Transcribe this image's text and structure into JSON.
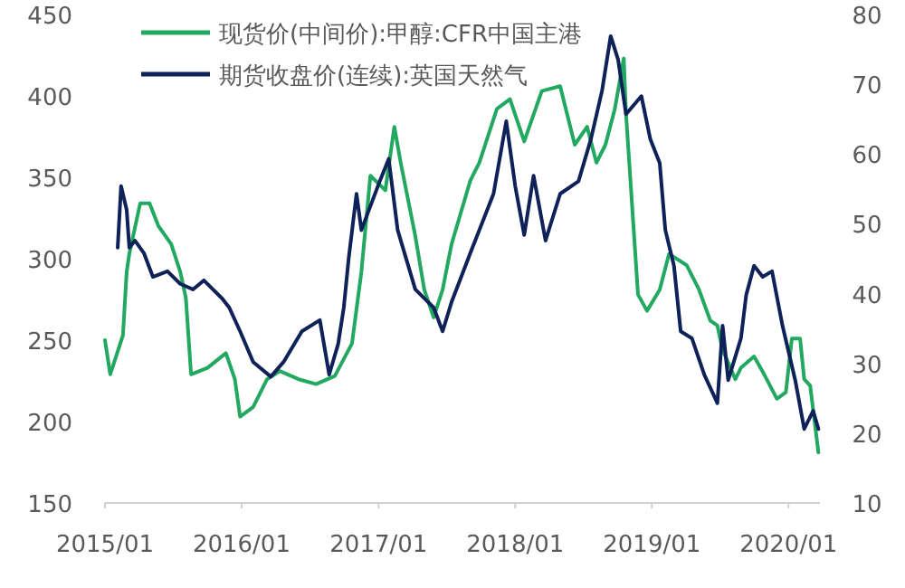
{
  "chart_data": {
    "type": "line",
    "legend": "top left",
    "grid": false,
    "xlim": [
      "2015-01-01",
      "2020-03-25"
    ],
    "xticks": [
      {
        "value": "2015-01-01",
        "label": "2015/01"
      },
      {
        "value": "2016-01-01",
        "label": "2016/01"
      },
      {
        "value": "2017-01-01",
        "label": "2017/01"
      },
      {
        "value": "2018-01-01",
        "label": "2018/01"
      },
      {
        "value": "2019-01-01",
        "label": "2019/01"
      },
      {
        "value": "2020-01-01",
        "label": "2020/01"
      }
    ],
    "ylim": [
      150,
      450
    ],
    "yticks": [
      150,
      200,
      250,
      300,
      350,
      400,
      450
    ],
    "y2lim": [
      10,
      80
    ],
    "y2ticks": [
      10,
      20,
      30,
      40,
      50,
      60,
      70,
      80
    ],
    "series": [
      {
        "name": "现货价(中间价):甲醇:CFR中国主港",
        "color": "#22a860",
        "x": [
          "2015-01-01",
          "2015-01-15",
          "2015-02-18",
          "2015-02-28",
          "2015-03-07",
          "2015-04-05",
          "2015-04-30",
          "2015-05-24",
          "2015-06-27",
          "2015-07-21",
          "2015-08-05",
          "2015-08-19",
          "2015-10-02",
          "2015-11-20",
          "2015-12-14",
          "2015-12-28",
          "2016-02-01",
          "2016-03-09",
          "2016-04-12",
          "2016-06-01",
          "2016-07-18",
          "2016-09-06",
          "2016-10-22",
          "2016-11-16",
          "2016-12-10",
          "2017-01-19",
          "2017-02-12",
          "2017-03-01",
          "2017-04-09",
          "2017-05-03",
          "2017-05-28",
          "2017-06-21",
          "2017-07-15",
          "2017-09-03",
          "2017-09-27",
          "2017-11-13",
          "2017-12-18",
          "2018-01-25",
          "2018-03-13",
          "2018-05-01",
          "2018-06-09",
          "2018-07-12",
          "2018-08-06",
          "2018-08-30",
          "2018-09-24",
          "2018-10-18",
          "2018-10-24",
          "2018-11-25",
          "2018-12-19",
          "2019-01-22",
          "2019-02-16",
          "2019-04-04",
          "2019-05-07",
          "2019-06-06",
          "2019-06-25",
          "2019-07-09",
          "2019-08-12",
          "2019-08-27",
          "2019-10-01",
          "2019-10-28",
          "2019-12-01",
          "2019-12-25",
          "2020-01-10",
          "2020-02-01",
          "2020-02-12",
          "2020-02-28",
          "2020-03-21"
        ],
        "values": [
          250,
          229,
          253,
          292,
          303,
          334,
          334,
          320,
          309,
          292,
          276,
          229,
          233,
          242,
          226,
          203,
          209,
          226,
          231,
          226,
          223,
          228,
          248,
          292,
          351,
          342,
          381,
          359,
          314,
          281,
          264,
          281,
          309,
          348,
          359,
          392,
          398,
          372,
          403,
          406,
          370,
          381,
          359,
          370,
          392,
          423,
          389,
          278,
          268,
          281,
          303,
          296,
          281,
          262,
          259,
          244,
          226,
          233,
          240,
          229,
          214,
          218,
          251,
          251,
          226,
          222,
          181
        ]
      },
      {
        "name": "期货收盘价(连续):英国天然气",
        "color": "#0e2158",
        "axis": "y2",
        "x": [
          "2015-02-04",
          "2015-02-13",
          "2015-02-28",
          "2015-03-07",
          "2015-03-22",
          "2015-04-15",
          "2015-05-09",
          "2015-06-17",
          "2015-07-21",
          "2015-08-24",
          "2015-09-22",
          "2015-11-10",
          "2015-11-29",
          "2015-12-28",
          "2016-02-01",
          "2016-03-19",
          "2016-04-22",
          "2016-06-10",
          "2016-07-28",
          "2016-08-22",
          "2016-09-15",
          "2016-09-30",
          "2016-10-13",
          "2016-11-03",
          "2016-11-16",
          "2017-01-04",
          "2017-01-28",
          "2017-02-21",
          "2017-04-09",
          "2017-05-28",
          "2017-06-21",
          "2017-07-15",
          "2017-09-03",
          "2017-11-04",
          "2017-12-08",
          "2018-01-01",
          "2018-01-25",
          "2018-02-19",
          "2018-03-23",
          "2018-05-01",
          "2018-06-19",
          "2018-07-22",
          "2018-08-21",
          "2018-09-13",
          "2018-10-03",
          "2018-10-24",
          "2018-12-04",
          "2018-12-28",
          "2019-01-22",
          "2019-02-06",
          "2019-03-01",
          "2019-03-19",
          "2019-04-18",
          "2019-05-21",
          "2019-06-25",
          "2019-07-09",
          "2019-07-24",
          "2019-08-27",
          "2019-09-10",
          "2019-10-01",
          "2019-10-24",
          "2019-11-18",
          "2019-12-16",
          "2020-01-19",
          "2020-02-12",
          "2020-03-07",
          "2020-03-21"
        ],
        "values": [
          46.6,
          55.4,
          52,
          46.6,
          47.6,
          45.8,
          42.4,
          43.2,
          41.4,
          40.6,
          41.9,
          39.3,
          38,
          34.6,
          30.2,
          28.1,
          30.2,
          34.6,
          36.2,
          28.4,
          32.8,
          38,
          45,
          54.3,
          49.1,
          56.1,
          59.3,
          49.1,
          40.6,
          38,
          34.6,
          38.8,
          45.8,
          54.3,
          64.7,
          55.4,
          48.4,
          56.9,
          47.6,
          54.3,
          56.1,
          62.1,
          69.1,
          76.9,
          73.5,
          65.7,
          68.3,
          62.1,
          58.7,
          49.1,
          44,
          34.6,
          33.6,
          28.4,
          24.3,
          35.4,
          27.6,
          33.6,
          39.8,
          44,
          42.4,
          43.2,
          35.4,
          27.6,
          20.6,
          23.2,
          20.6
        ]
      }
    ]
  }
}
